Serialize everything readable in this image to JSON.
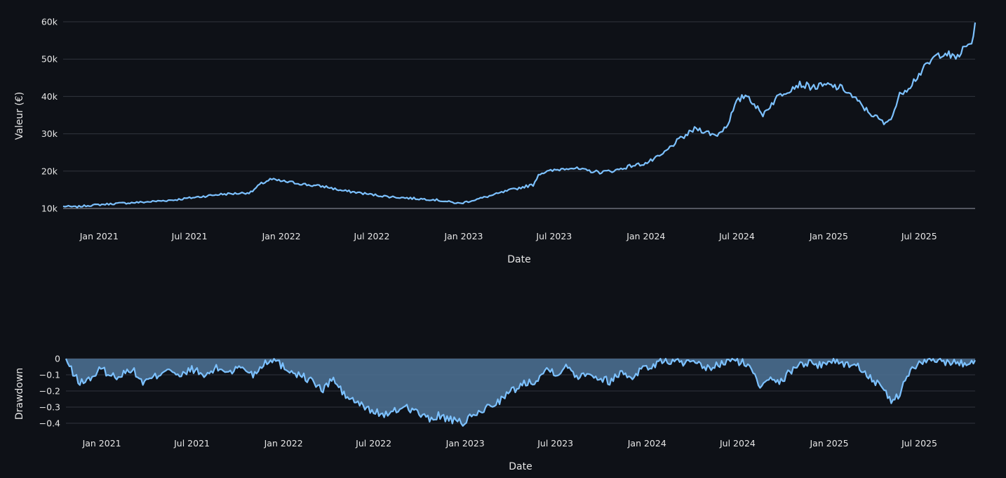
{
  "chart_data": [
    {
      "type": "line",
      "title": "",
      "xlabel": "Date",
      "ylabel": "Valeur (€)",
      "x_range": [
        "2020-10-21",
        "2025-10-21"
      ],
      "ylim": [
        10000,
        60000
      ],
      "yticks": [
        {
          "value": 10000,
          "label": "10k"
        },
        {
          "value": 20000,
          "label": "20k"
        },
        {
          "value": 30000,
          "label": "30k"
        },
        {
          "value": 40000,
          "label": "40k"
        },
        {
          "value": 50000,
          "label": "50k"
        },
        {
          "value": 60000,
          "label": "60k"
        }
      ],
      "xticks": [
        {
          "date": "2021-01-01",
          "label": "Jan 2021"
        },
        {
          "date": "2021-07-01",
          "label": "Jul 2021"
        },
        {
          "date": "2022-01-01",
          "label": "Jan 2022"
        },
        {
          "date": "2022-07-01",
          "label": "Jul 2022"
        },
        {
          "date": "2023-01-01",
          "label": "Jan 2023"
        },
        {
          "date": "2023-07-01",
          "label": "Jul 2023"
        },
        {
          "date": "2024-01-01",
          "label": "Jan 2024"
        },
        {
          "date": "2024-07-01",
          "label": "Jul 2024"
        },
        {
          "date": "2025-01-01",
          "label": "Jan 2025"
        },
        {
          "date": "2025-07-01",
          "label": "Jul 2025"
        }
      ],
      "grid": true,
      "color": "#7cc1ff",
      "series": [
        {
          "x": [
            "2020-10-21",
            "2020-11-15",
            "2020-12-10",
            "2021-01-01",
            "2021-02-01",
            "2021-03-01",
            "2021-04-01",
            "2021-05-01",
            "2021-06-01",
            "2021-07-01",
            "2021-08-01",
            "2021-09-01",
            "2021-10-01",
            "2021-11-01",
            "2021-11-20",
            "2021-12-10",
            "2022-01-01",
            "2022-02-01",
            "2022-03-01",
            "2022-04-01",
            "2022-05-01",
            "2022-06-01",
            "2022-07-01",
            "2022-08-01",
            "2022-09-01",
            "2022-10-01",
            "2022-11-01",
            "2022-12-01",
            "2022-12-25",
            "2023-01-01",
            "2023-02-01",
            "2023-03-01",
            "2023-04-01",
            "2023-05-01",
            "2023-05-20",
            "2023-06-01",
            "2023-07-01",
            "2023-08-01",
            "2023-09-01",
            "2023-10-01",
            "2023-11-01",
            "2023-12-01",
            "2024-01-01",
            "2024-02-01",
            "2024-03-01",
            "2024-03-20",
            "2024-04-10",
            "2024-05-01",
            "2024-05-20",
            "2024-06-10",
            "2024-07-01",
            "2024-07-20",
            "2024-08-05",
            "2024-08-20",
            "2024-09-05",
            "2024-09-25",
            "2024-10-15",
            "2024-11-01",
            "2024-12-01",
            "2025-01-01",
            "2025-02-01",
            "2025-03-01",
            "2025-03-20",
            "2025-04-05",
            "2025-04-25",
            "2025-05-10",
            "2025-05-25",
            "2025-06-10",
            "2025-07-01",
            "2025-08-01",
            "2025-08-20",
            "2025-09-10",
            "2025-10-01",
            "2025-10-15",
            "2025-10-21"
          ],
          "values": [
            10600,
            10400,
            10800,
            11000,
            11300,
            11500,
            11700,
            12000,
            12300,
            12800,
            13300,
            13800,
            14000,
            14300,
            16500,
            17800,
            17300,
            16800,
            16200,
            15800,
            14800,
            14300,
            13700,
            13200,
            12900,
            12600,
            12400,
            11800,
            11300,
            11600,
            12600,
            13600,
            14800,
            15800,
            16300,
            19400,
            20200,
            21000,
            20200,
            19700,
            20200,
            21400,
            22100,
            24200,
            27800,
            29500,
            31500,
            30500,
            29500,
            32000,
            38500,
            40600,
            38000,
            35000,
            37500,
            40500,
            42000,
            43300,
            42500,
            43000,
            42000,
            38500,
            36000,
            34500,
            32500,
            35500,
            41000,
            42500,
            46000,
            50500,
            52000,
            50000,
            53000,
            54500,
            59800
          ]
        }
      ]
    },
    {
      "type": "area",
      "title": "",
      "xlabel": "Date",
      "ylabel": "Drawdown",
      "x_range": [
        "2020-10-21",
        "2025-10-21"
      ],
      "ylim": [
        -0.42,
        0
      ],
      "yticks": [
        {
          "value": 0,
          "label": "0"
        },
        {
          "value": -0.1,
          "label": "−0.1"
        },
        {
          "value": -0.2,
          "label": "−0.2"
        },
        {
          "value": -0.3,
          "label": "−0.3"
        },
        {
          "value": -0.4,
          "label": "−0.4"
        }
      ],
      "xticks": [
        {
          "date": "2021-01-01",
          "label": "Jan 2021"
        },
        {
          "date": "2021-07-01",
          "label": "Jul 2021"
        },
        {
          "date": "2022-01-01",
          "label": "Jan 2022"
        },
        {
          "date": "2022-07-01",
          "label": "Jul 2022"
        },
        {
          "date": "2023-01-01",
          "label": "Jan 2023"
        },
        {
          "date": "2023-07-01",
          "label": "Jul 2023"
        },
        {
          "date": "2024-01-01",
          "label": "Jan 2024"
        },
        {
          "date": "2024-07-01",
          "label": "Jul 2024"
        },
        {
          "date": "2025-01-01",
          "label": "Jan 2025"
        },
        {
          "date": "2025-07-01",
          "label": "Jul 2025"
        }
      ],
      "grid": true,
      "color": "#7cc1ff",
      "fill_color": "#4a6e8f",
      "series": [
        {
          "x": [
            "2020-10-21",
            "2020-11-05",
            "2020-11-20",
            "2020-12-10",
            "2021-01-01",
            "2021-01-20",
            "2021-02-10",
            "2021-03-01",
            "2021-03-25",
            "2021-04-20",
            "2021-05-15",
            "2021-06-05",
            "2021-07-01",
            "2021-07-25",
            "2021-08-20",
            "2021-09-15",
            "2021-10-10",
            "2021-11-01",
            "2021-11-25",
            "2021-12-10",
            "2022-01-01",
            "2022-02-01",
            "2022-03-01",
            "2022-03-20",
            "2022-04-10",
            "2022-05-01",
            "2022-06-01",
            "2022-07-01",
            "2022-08-01",
            "2022-09-01",
            "2022-10-01",
            "2022-10-20",
            "2022-11-10",
            "2022-12-01",
            "2022-12-25",
            "2023-01-15",
            "2023-02-10",
            "2023-03-10",
            "2023-04-05",
            "2023-05-01",
            "2023-05-25",
            "2023-06-15",
            "2023-07-05",
            "2023-07-25",
            "2023-08-15",
            "2023-09-05",
            "2023-09-25",
            "2023-10-20",
            "2023-11-10",
            "2023-12-01",
            "2023-12-20",
            "2024-01-10",
            "2024-02-01",
            "2024-03-01",
            "2024-04-01",
            "2024-05-01",
            "2024-05-25",
            "2024-06-15",
            "2024-07-10",
            "2024-08-01",
            "2024-08-15",
            "2024-09-05",
            "2024-09-25",
            "2024-10-20",
            "2024-11-15",
            "2024-12-10",
            "2025-01-05",
            "2025-02-01",
            "2025-03-01",
            "2025-03-20",
            "2025-04-05",
            "2025-04-25",
            "2025-05-10",
            "2025-05-25",
            "2025-06-15",
            "2025-07-10",
            "2025-08-05",
            "2025-09-01",
            "2025-09-25",
            "2025-10-10",
            "2025-10-21"
          ],
          "values": [
            0,
            -0.1,
            -0.15,
            -0.12,
            -0.06,
            -0.11,
            -0.1,
            -0.06,
            -0.15,
            -0.11,
            -0.05,
            -0.12,
            -0.06,
            -0.11,
            -0.06,
            -0.08,
            -0.05,
            -0.1,
            -0.02,
            0,
            -0.05,
            -0.1,
            -0.14,
            -0.2,
            -0.12,
            -0.22,
            -0.28,
            -0.33,
            -0.35,
            -0.29,
            -0.34,
            -0.38,
            -0.35,
            -0.38,
            -0.4,
            -0.36,
            -0.31,
            -0.26,
            -0.2,
            -0.15,
            -0.13,
            -0.06,
            -0.09,
            -0.05,
            -0.11,
            -0.08,
            -0.12,
            -0.14,
            -0.08,
            -0.12,
            -0.06,
            -0.05,
            -0.01,
            -0.02,
            -0.03,
            -0.06,
            -0.04,
            -0.01,
            -0.02,
            -0.08,
            -0.17,
            -0.1,
            -0.15,
            -0.06,
            -0.02,
            -0.04,
            -0.01,
            -0.03,
            -0.05,
            -0.1,
            -0.15,
            -0.22,
            -0.27,
            -0.2,
            -0.06,
            -0.02,
            -0.01,
            -0.02,
            -0.03,
            -0.02,
            -0.01
          ]
        }
      ]
    }
  ]
}
